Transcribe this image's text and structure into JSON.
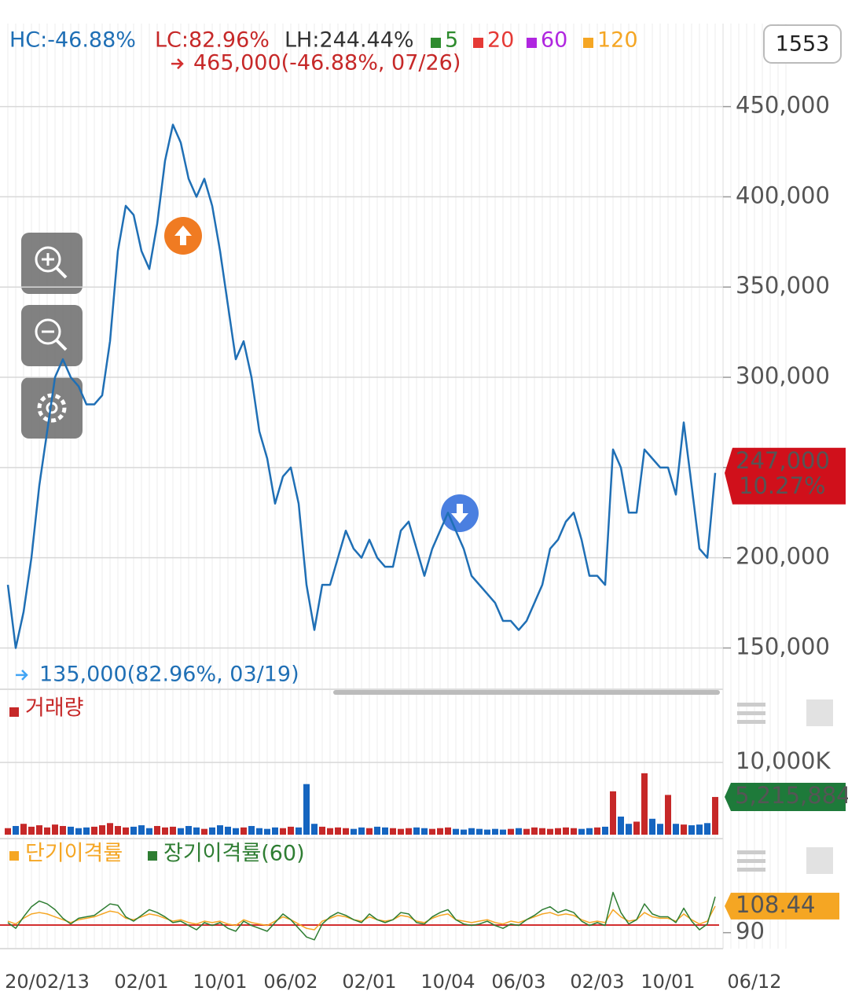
{
  "header": {
    "hc": "HC:-46.88%",
    "lc": "LC:82.96%",
    "lh": "LH:244.44%",
    "button": "1553"
  },
  "chart_data": [
    {
      "type": "line",
      "color": "#1f6fb5",
      "categories": [
        null,
        null,
        null,
        null,
        null,
        "20/02/13",
        null,
        null,
        null,
        null,
        null,
        null,
        null,
        null,
        null,
        null,
        null,
        "02/01",
        null,
        null,
        null,
        null,
        null,
        null,
        null,
        null,
        null,
        "10/01",
        null,
        null,
        null,
        null,
        null,
        null,
        null,
        null,
        "06/02",
        null,
        null,
        null,
        null,
        null,
        null,
        null,
        null,
        null,
        "02/01",
        null,
        null,
        null,
        null,
        null,
        null,
        null,
        null,
        null,
        "10/04",
        null,
        null,
        null,
        null,
        null,
        null,
        null,
        null,
        "06/03",
        null,
        null,
        null,
        null,
        null,
        null,
        null,
        null,
        null,
        "02/03",
        null,
        null,
        null,
        null,
        null,
        null,
        null,
        null,
        "10/01",
        null,
        null,
        null,
        null,
        null,
        null,
        null,
        null,
        null,
        null,
        "06/12",
        null,
        null,
        null,
        null
      ],
      "values": [
        185000,
        150000,
        170000,
        200000,
        240000,
        270000,
        300000,
        310000,
        300000,
        295000,
        285000,
        285000,
        290000,
        320000,
        370000,
        395000,
        390000,
        370000,
        360000,
        385000,
        420000,
        440000,
        430000,
        410000,
        400000,
        410000,
        395000,
        370000,
        340000,
        310000,
        320000,
        300000,
        270000,
        255000,
        230000,
        245000,
        250000,
        230000,
        185000,
        160000,
        185000,
        185000,
        200000,
        215000,
        205000,
        200000,
        210000,
        200000,
        195000,
        195000,
        215000,
        220000,
        205000,
        190000,
        205000,
        215000,
        225000,
        215000,
        205000,
        190000,
        185000,
        180000,
        175000,
        165000,
        165000,
        160000,
        165000,
        175000,
        185000,
        205000,
        210000,
        220000,
        225000,
        210000,
        190000,
        190000,
        185000,
        260000,
        250000,
        225000,
        225000,
        260000,
        255000,
        250000,
        250000,
        235000,
        275000,
        240000,
        205000,
        200000,
        247000,
        null,
        null,
        null,
        null,
        null,
        null,
        null,
        null,
        null
      ],
      "ma_legend": [
        {
          "name": "5",
          "color": "#2e8b2e"
        },
        {
          "name": "20",
          "color": "#e53935"
        },
        {
          "name": "60",
          "color": "#b026e0"
        },
        {
          "name": "120",
          "color": "#f5a623"
        }
      ],
      "ylim": [
        128000,
        496000
      ],
      "yticks": [
        {
          "value": 150000,
          "label": "150,000"
        },
        {
          "value": 200000,
          "label": "200,000"
        },
        {
          "value": 250000,
          "label": "250,000"
        },
        {
          "value": 300000,
          "label": "300,000"
        },
        {
          "value": 350000,
          "label": "350,000"
        },
        {
          "value": 400000,
          "label": "400,000"
        },
        {
          "value": 450000,
          "label": "450,000"
        }
      ],
      "high": {
        "value": 465000,
        "label": "465,000(-46.88%, 07/26)"
      },
      "low": {
        "value": 135000,
        "label": "135,000(82.96%, 03/19)"
      },
      "current": {
        "value": 247000,
        "label": "247,000",
        "change": "10.27%"
      }
    },
    {
      "type": "bar",
      "title": "거래량",
      "up_color": "#c62828",
      "down_color": "#1565c0",
      "values": [
        900000,
        1200000,
        1500000,
        1100000,
        1300000,
        1000000,
        1400000,
        1200000,
        1100000,
        900000,
        1000000,
        1100000,
        1300000,
        1600000,
        1200000,
        1000000,
        1100000,
        1300000,
        900000,
        1200000,
        1000000,
        1100000,
        900000,
        1200000,
        1000000,
        800000,
        1000000,
        1300000,
        1100000,
        900000,
        1000000,
        1200000,
        900000,
        800000,
        1000000,
        900000,
        1100000,
        1000000,
        7000000,
        1500000,
        1100000,
        900000,
        1000000,
        900000,
        800000,
        1000000,
        900000,
        1100000,
        1000000,
        900000,
        800000,
        900000,
        1000000,
        900000,
        800000,
        900000,
        1000000,
        800000,
        700000,
        900000,
        800000,
        700000,
        800000,
        700000,
        800000,
        900000,
        800000,
        1000000,
        900000,
        800000,
        900000,
        1000000,
        900000,
        800000,
        900000,
        1000000,
        1100000,
        6000000,
        2500000,
        1500000,
        1800000,
        8500000,
        2200000,
        1500000,
        5500000,
        1500000,
        1400000,
        1300000,
        1400000,
        1600000,
        5215884,
        null,
        null,
        null,
        null,
        null,
        null,
        null,
        null,
        null
      ],
      "ylim": [
        0,
        19800000
      ],
      "yticks": [
        {
          "value": 10000000,
          "label": "10,000K"
        }
      ],
      "current": {
        "value": 5215884,
        "label": "5,215,884"
      }
    },
    {
      "type": "line",
      "series": [
        {
          "name": "단기이격률",
          "color": "#f5a623",
          "values": [
            98,
            96,
            100,
            103,
            104,
            103,
            101,
            99,
            97,
            99,
            100,
            101,
            103,
            105,
            104,
            100,
            99,
            101,
            103,
            102,
            100,
            98,
            99,
            97,
            96,
            98,
            97,
            98,
            96,
            95,
            99,
            97,
            96,
            95,
            98,
            101,
            99,
            96,
            93,
            92,
            98,
            100,
            102,
            101,
            99,
            98,
            101,
            99,
            98,
            99,
            102,
            101,
            98,
            97,
            100,
            102,
            103,
            99,
            98,
            97,
            98,
            99,
            97,
            96,
            98,
            97,
            99,
            101,
            103,
            104,
            102,
            103,
            102,
            99,
            97,
            98,
            97,
            106,
            101,
            98,
            99,
            104,
            101,
            100,
            100,
            98,
            103,
            99,
            96,
            98,
            108.44,
            null,
            null,
            null,
            null,
            null,
            null,
            null,
            null,
            null
          ]
        },
        {
          "name": "장기이격률(60)",
          "color": "#2e7d32",
          "values": [
            97,
            93,
            101,
            108,
            112,
            110,
            106,
            100,
            96,
            100,
            101,
            102,
            106,
            110,
            109,
            101,
            98,
            102,
            106,
            104,
            101,
            97,
            98,
            95,
            92,
            97,
            95,
            97,
            93,
            91,
            98,
            95,
            93,
            91,
            97,
            103,
            99,
            93,
            87,
            85,
            96,
            101,
            104,
            102,
            99,
            97,
            103,
            99,
            97,
            99,
            104,
            103,
            97,
            96,
            101,
            104,
            106,
            99,
            96,
            95,
            96,
            98,
            95,
            93,
            96,
            95,
            99,
            102,
            106,
            108,
            104,
            106,
            104,
            98,
            95,
            97,
            95,
            118,
            104,
            96,
            99,
            110,
            103,
            101,
            101,
            97,
            107,
            98,
            92,
            96,
            115,
            null,
            null,
            null,
            null,
            null,
            null,
            null,
            null,
            null
          ]
        }
      ],
      "ylim": [
        80,
        151
      ],
      "yticks": [
        90
      ],
      "current": 108.44
    }
  ]
}
